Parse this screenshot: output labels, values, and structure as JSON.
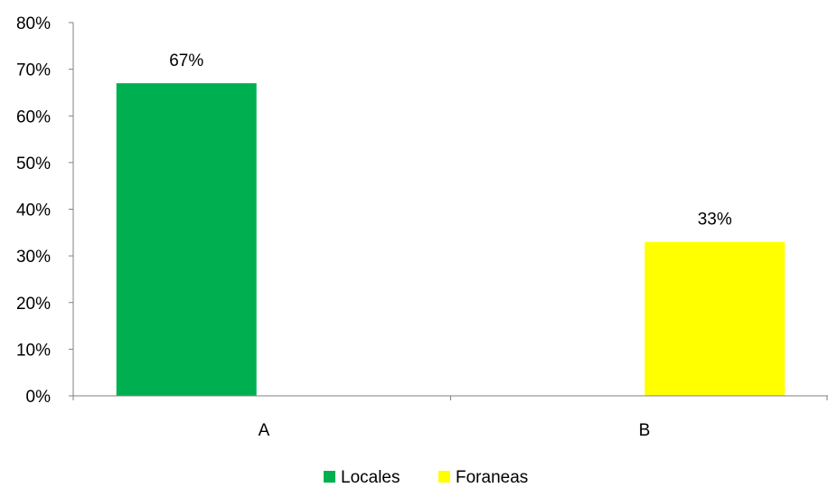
{
  "chart_data": {
    "type": "bar",
    "categories": [
      "A",
      "B"
    ],
    "series": [
      {
        "name": "Locales",
        "values": [
          67,
          null
        ],
        "color": "#00b050"
      },
      {
        "name": "Foraneas",
        "values": [
          null,
          33
        ],
        "color": "#ffff00"
      }
    ],
    "data_labels": [
      "67%",
      "33%"
    ],
    "yticks": [
      "0%",
      "10%",
      "20%",
      "30%",
      "40%",
      "50%",
      "60%",
      "70%",
      "80%"
    ],
    "ylim": [
      0,
      80
    ],
    "grid": false,
    "legend_position": "bottom"
  }
}
